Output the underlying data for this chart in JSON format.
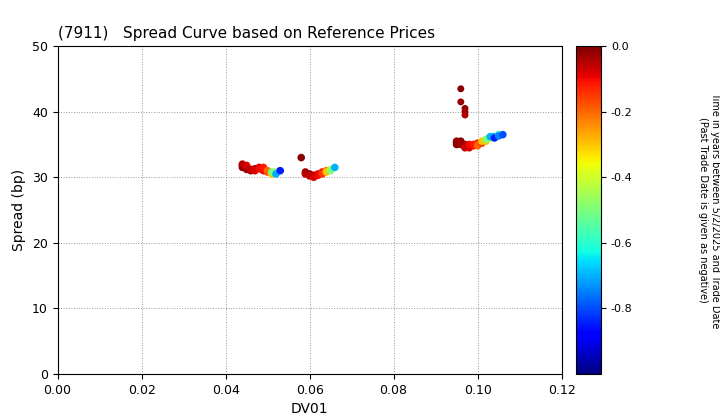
{
  "title": "(7911)   Spread Curve based on Reference Prices",
  "xlabel": "DV01",
  "ylabel": "Spread (bp)",
  "xlim": [
    0.0,
    0.12
  ],
  "ylim": [
    0,
    50
  ],
  "xticks": [
    0.0,
    0.02,
    0.04,
    0.06,
    0.08,
    0.1,
    0.12
  ],
  "yticks": [
    0,
    10,
    20,
    30,
    40,
    50
  ],
  "colorbar_label_line1": "Time in years between 5/2/2025 and Trade Date",
  "colorbar_label_line2": "(Past Trade Date is given as negative)",
  "clim": [
    -1.0,
    0.0
  ],
  "cluster1": {
    "dv01": [
      0.044,
      0.044,
      0.044,
      0.045,
      0.045,
      0.045,
      0.046,
      0.046,
      0.047,
      0.047,
      0.048,
      0.048,
      0.049,
      0.049,
      0.05,
      0.05,
      0.051,
      0.051,
      0.052,
      0.052,
      0.053
    ],
    "spread": [
      31.5,
      31.8,
      32.0,
      31.2,
      31.5,
      31.8,
      31.0,
      31.2,
      31.3,
      31.0,
      31.5,
      31.3,
      31.0,
      31.5,
      30.8,
      31.0,
      30.5,
      30.8,
      30.8,
      30.5,
      31.0
    ],
    "time": [
      -0.01,
      -0.02,
      -0.05,
      -0.02,
      -0.04,
      -0.08,
      -0.03,
      -0.06,
      -0.05,
      -0.08,
      -0.08,
      -0.1,
      -0.1,
      -0.12,
      -0.15,
      -0.2,
      -0.3,
      -0.5,
      -0.5,
      -0.7,
      -0.85
    ]
  },
  "cluster2": {
    "dv01": [
      0.058,
      0.059,
      0.059,
      0.06,
      0.06,
      0.061,
      0.061,
      0.062,
      0.062,
      0.063,
      0.063,
      0.064,
      0.064,
      0.065,
      0.065,
      0.066
    ],
    "spread": [
      33.0,
      30.8,
      30.5,
      30.5,
      30.2,
      30.3,
      30.0,
      30.5,
      30.3,
      30.8,
      30.5,
      31.0,
      30.8,
      31.2,
      31.0,
      31.5
    ],
    "time": [
      -0.01,
      -0.02,
      -0.05,
      -0.03,
      -0.06,
      -0.04,
      -0.08,
      -0.08,
      -0.1,
      -0.12,
      -0.15,
      -0.2,
      -0.3,
      -0.4,
      -0.5,
      -0.7
    ]
  },
  "cluster3": {
    "dv01": [
      0.095,
      0.095,
      0.095,
      0.096,
      0.096,
      0.096,
      0.097,
      0.097,
      0.097,
      0.098,
      0.098,
      0.098,
      0.099,
      0.099,
      0.1,
      0.1,
      0.1,
      0.101,
      0.101,
      0.102,
      0.102,
      0.103,
      0.103,
      0.104,
      0.104,
      0.105,
      0.105,
      0.106
    ],
    "spread": [
      35.0,
      35.3,
      35.5,
      35.5,
      35.2,
      35.0,
      35.0,
      34.8,
      34.5,
      34.8,
      34.5,
      35.0,
      34.8,
      35.0,
      35.2,
      35.0,
      34.8,
      35.2,
      35.5,
      35.5,
      35.8,
      36.0,
      36.2,
      36.2,
      36.0,
      36.5,
      36.3,
      36.5
    ],
    "time": [
      -0.005,
      -0.01,
      -0.02,
      -0.01,
      -0.02,
      -0.03,
      -0.02,
      -0.04,
      -0.06,
      -0.04,
      -0.08,
      -0.1,
      -0.1,
      -0.12,
      -0.12,
      -0.15,
      -0.2,
      -0.15,
      -0.3,
      -0.3,
      -0.5,
      -0.5,
      -0.7,
      -0.7,
      -0.85,
      -0.6,
      -0.75,
      -0.8
    ]
  },
  "outliers_c3": {
    "dv01": [
      0.096,
      0.096,
      0.097,
      0.097,
      0.097
    ],
    "spread": [
      43.5,
      41.5,
      40.5,
      40.0,
      39.5
    ],
    "time": [
      -0.01,
      -0.02,
      -0.02,
      -0.03,
      -0.04
    ]
  }
}
